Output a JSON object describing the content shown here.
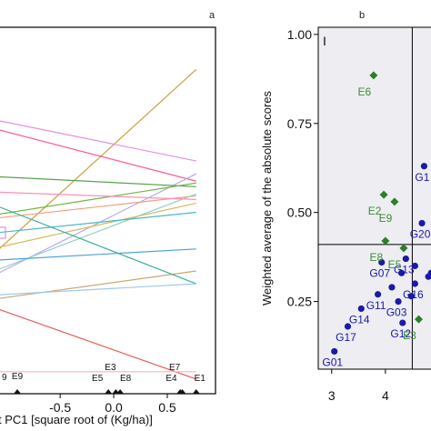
{
  "chart_data": [
    {
      "type": "line",
      "panel_label": "a",
      "xlabel": "t PC1 [square root of (Kg/ha)]",
      "x_ticks": [
        "-0.5",
        "0.0",
        "0.5"
      ],
      "x_tick_values": [
        -0.5,
        0.0,
        0.5
      ],
      "xlim": [
        -1.07,
        0.95
      ],
      "ylim": [
        0,
        1
      ],
      "left_partial_label": "9",
      "grid": false,
      "legend": "none",
      "series_endpoints": {
        "x_left": -1.07,
        "x_right": 0.77
      },
      "series": [
        {
          "color": "#c8a040",
          "y_start": 0.395,
          "y_end": 0.885
        },
        {
          "color": "#e48fdc",
          "y_start": 0.745,
          "y_end": 0.635
        },
        {
          "color": "#ff5a8c",
          "y_start": 0.72,
          "y_end": 0.58
        },
        {
          "color": "#b9a6ec",
          "y_start": 0.33,
          "y_end": 0.6
        },
        {
          "color": "#5aa050",
          "y_start": 0.592,
          "y_end": 0.565
        },
        {
          "color": "#70b840",
          "y_start": 0.49,
          "y_end": 0.575
        },
        {
          "color": "#f0a07a",
          "y_start": 0.48,
          "y_end": 0.54
        },
        {
          "color": "#8fd2c8",
          "y_start": 0.34,
          "y_end": 0.545
        },
        {
          "color": "#ff8fb8",
          "y_start": 0.55,
          "y_end": 0.53
        },
        {
          "color": "#d6b95a",
          "y_start": 0.4,
          "y_end": 0.52
        },
        {
          "color": "#49b8c8",
          "y_start": 0.44,
          "y_end": 0.495
        },
        {
          "color": "#4da2d8",
          "y_start": 0.365,
          "y_end": 0.395
        },
        {
          "color": "#c9a870",
          "y_start": 0.26,
          "y_end": 0.335
        },
        {
          "color": "#3fb0a0",
          "y_start": 0.51,
          "y_end": 0.3
        },
        {
          "color": "#a0c8e8",
          "y_start": 0.27,
          "y_end": 0.3
        },
        {
          "color": "#e65c5c",
          "y_start": 0.23,
          "y_end": 0.04
        },
        {
          "color": "#f5b5b5",
          "y_start": 0.06,
          "y_end": 0.06
        }
      ],
      "annotations": [
        {
          "text": "E9",
          "x": -0.9
        },
        {
          "text": "E3",
          "x": 0.02
        },
        {
          "text": "E5",
          "x": -0.05
        },
        {
          "text": "E8",
          "x": 0.06
        },
        {
          "text": "E7",
          "x": 0.62
        },
        {
          "text": "E4",
          "x": 0.64
        },
        {
          "text": "E1",
          "x": 0.77
        }
      ]
    },
    {
      "type": "scatter",
      "panel_label": "b",
      "ylabel": "Weighted average of the absolute scores",
      "x_ticks": [
        "3",
        "4"
      ],
      "x_tick_values": [
        3,
        4
      ],
      "xlim": [
        2.75,
        4.95
      ],
      "y_ticks": [
        "0.25",
        "0.50",
        "0.75",
        "1.00"
      ],
      "y_tick_values": [
        0.25,
        0.5,
        0.75,
        1.0
      ],
      "ylim": [
        0.06,
        1.02
      ],
      "quadrant_label": "I",
      "reference_lines": {
        "x": 4.5,
        "y": 0.41
      },
      "grid": false,
      "legend": "none",
      "environments": [
        {
          "label": "E6",
          "x": 3.78,
          "y": 0.885
        },
        {
          "label": "E2",
          "x": 3.97,
          "y": 0.55
        },
        {
          "label": "E9",
          "x": 4.17,
          "y": 0.53
        },
        {
          "label": "E8",
          "x": 4.0,
          "y": 0.42
        },
        {
          "label": "E5",
          "x": 4.34,
          "y": 0.4
        },
        {
          "label": "E3",
          "x": 4.62,
          "y": 0.2
        }
      ],
      "genotypes": [
        {
          "label": "G1",
          "x": 4.72,
          "y": 0.63
        },
        {
          "label": "G20",
          "x": 4.68,
          "y": 0.47
        },
        {
          "label": "G07",
          "x": 3.93,
          "y": 0.36
        },
        {
          "label": "G13",
          "x": 4.38,
          "y": 0.37
        },
        {
          "label": "G11",
          "x": 3.86,
          "y": 0.27
        },
        {
          "label": "G14",
          "x": 3.55,
          "y": 0.23
        },
        {
          "label": "G03",
          "x": 4.24,
          "y": 0.25
        },
        {
          "label": "G16",
          "x": 4.55,
          "y": 0.3
        },
        {
          "label": "G17",
          "x": 3.3,
          "y": 0.18
        },
        {
          "label": "G12",
          "x": 4.32,
          "y": 0.19
        },
        {
          "label": "G01",
          "x": 3.05,
          "y": 0.11
        }
      ],
      "extra_points": [
        {
          "x": 4.12,
          "y": 0.29
        },
        {
          "x": 4.3,
          "y": 0.33
        },
        {
          "x": 4.48,
          "y": 0.265
        },
        {
          "x": 4.55,
          "y": 0.35
        },
        {
          "x": 4.8,
          "y": 0.32
        },
        {
          "x": 4.85,
          "y": 0.33
        }
      ]
    }
  ]
}
